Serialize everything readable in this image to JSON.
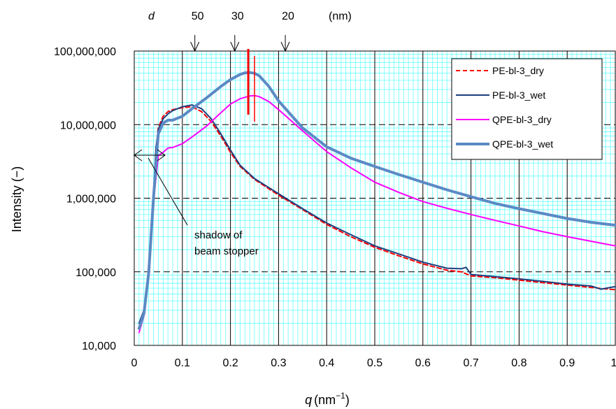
{
  "chart_data": {
    "type": "line",
    "x_axis": {
      "label_symbol": "q",
      "label_unit": "(nm",
      "label_unit_exp": "−1",
      "label_unit_close": ")",
      "range": [
        0,
        1
      ],
      "ticks": [
        0,
        0.1,
        0.2,
        0.3,
        0.4,
        0.5,
        0.6,
        0.7,
        0.8,
        0.9,
        1
      ],
      "tick_labels": [
        "0",
        "0.1",
        "0.2",
        "0.3",
        "0.4",
        "0.5",
        "0.6",
        "0.7",
        "0.8",
        "0.9",
        "1"
      ]
    },
    "y_axis": {
      "label": "Intensity (−)",
      "scale": "log",
      "range": [
        10000,
        100000000
      ],
      "ticks": [
        10000,
        100000,
        1000000,
        10000000,
        100000000
      ],
      "tick_labels": [
        "10,000",
        "100,000",
        "1,000,000",
        "10,000,000",
        "100,000,000"
      ]
    },
    "top_axis": {
      "symbol": "d",
      "unit": "(nm)",
      "marks": [
        {
          "label": "50",
          "q": 0.126
        },
        {
          "label": "30",
          "q": 0.209
        },
        {
          "label": "20",
          "q": 0.314
        }
      ]
    },
    "grid": {
      "major": true,
      "minor": true,
      "major_color": "#000000",
      "minor_color": "#66ffff"
    },
    "legend": {
      "position": "top-right"
    },
    "series": [
      {
        "name": "PE-bl-3_dry",
        "color": "#ff0000",
        "dash": true,
        "x": [
          0.01,
          0.02,
          0.03,
          0.04,
          0.045,
          0.05,
          0.06,
          0.07,
          0.08,
          0.1,
          0.12,
          0.14,
          0.16,
          0.18,
          0.2,
          0.22,
          0.25,
          0.3,
          0.35,
          0.4,
          0.45,
          0.5,
          0.55,
          0.6,
          0.65,
          0.68,
          0.7,
          0.75,
          0.8,
          0.85,
          0.9,
          0.95,
          1.0
        ],
        "y": [
          18000,
          28000,
          100000,
          1000000,
          4500000,
          9000000,
          13000000,
          15000000,
          16000000,
          17000000,
          17500000,
          15000000,
          11000000,
          7000000,
          4200000,
          2700000,
          1800000,
          1100000,
          700000,
          440000,
          300000,
          215000,
          165000,
          128000,
          105000,
          100000,
          88000,
          83000,
          77000,
          71000,
          66000,
          61000,
          57000
        ]
      },
      {
        "name": "PE-bl-3_wet",
        "color": "#1f3f7f",
        "dash": false,
        "x": [
          0.01,
          0.02,
          0.03,
          0.04,
          0.045,
          0.05,
          0.06,
          0.07,
          0.08,
          0.1,
          0.12,
          0.14,
          0.16,
          0.18,
          0.2,
          0.22,
          0.25,
          0.3,
          0.35,
          0.4,
          0.45,
          0.5,
          0.55,
          0.6,
          0.65,
          0.68,
          0.69,
          0.7,
          0.75,
          0.8,
          0.85,
          0.9,
          0.95,
          0.97,
          1.0
        ],
        "y": [
          20000,
          30000,
          110000,
          1100000,
          4800000,
          8500000,
          12000000,
          14000000,
          15500000,
          17500000,
          18500000,
          16500000,
          12000000,
          7500000,
          4500000,
          2800000,
          1850000,
          1150000,
          720000,
          460000,
          320000,
          225000,
          175000,
          135000,
          112000,
          110000,
          115000,
          92000,
          86000,
          80000,
          74000,
          68000,
          64000,
          58000,
          63000
        ]
      },
      {
        "name": "QPE-bl-3_dry",
        "color": "#ff00ff",
        "dash": false,
        "x": [
          0.01,
          0.02,
          0.03,
          0.04,
          0.05,
          0.06,
          0.07,
          0.08,
          0.1,
          0.12,
          0.15,
          0.18,
          0.2,
          0.22,
          0.24,
          0.25,
          0.26,
          0.28,
          0.3,
          0.35,
          0.4,
          0.45,
          0.5,
          0.55,
          0.6,
          0.65,
          0.7,
          0.75,
          0.8,
          0.85,
          0.9,
          0.95,
          1.0
        ],
        "y": [
          15000,
          25000,
          90000,
          900000,
          3800000,
          4200000,
          4800000,
          4900000,
          5500000,
          6800000,
          9500000,
          14500000,
          19000000,
          22500000,
          24500000,
          24800000,
          24000000,
          20500000,
          16000000,
          8200000,
          4300000,
          2600000,
          1650000,
          1200000,
          900000,
          730000,
          600000,
          500000,
          420000,
          350000,
          300000,
          260000,
          225000
        ]
      },
      {
        "name": "QPE-bl-3_wet",
        "color": "#5b8ac5",
        "dash": false,
        "x": [
          0.01,
          0.02,
          0.03,
          0.04,
          0.05,
          0.06,
          0.07,
          0.08,
          0.1,
          0.12,
          0.15,
          0.18,
          0.2,
          0.22,
          0.23,
          0.24,
          0.25,
          0.26,
          0.28,
          0.3,
          0.35,
          0.4,
          0.45,
          0.5,
          0.55,
          0.6,
          0.65,
          0.7,
          0.75,
          0.8,
          0.85,
          0.9,
          0.95,
          1.0
        ],
        "y": [
          17000,
          27000,
          95000,
          1000000,
          7500000,
          10500000,
          11500000,
          11500000,
          13000000,
          16500000,
          23000000,
          33000000,
          41000000,
          48000000,
          50500000,
          51000000,
          50000000,
          46000000,
          33000000,
          21000000,
          9000000,
          5000000,
          3500000,
          2700000,
          2100000,
          1650000,
          1300000,
          1050000,
          850000,
          720000,
          620000,
          530000,
          470000,
          430000
        ]
      }
    ],
    "annotations": {
      "beam_stopper_text": [
        "shadow of",
        "beam stopper"
      ],
      "peak_markers": [
        {
          "q": 0.237,
          "color": "#ff0000"
        },
        {
          "q": 0.25,
          "color": "#ff0000"
        }
      ]
    }
  }
}
